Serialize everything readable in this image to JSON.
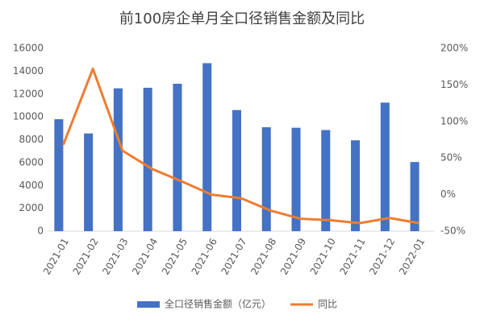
{
  "chart_data": {
    "type": "bar",
    "title": "前100房企单月全口径销售金额及同比",
    "categories": [
      "2021-01",
      "2021-02",
      "2021-03",
      "2021-04",
      "2021-05",
      "2021-06",
      "2021-07",
      "2021-08",
      "2021-09",
      "2021-10",
      "2021-11",
      "2021-12",
      "2022-01"
    ],
    "series": [
      {
        "name": "全口径销售金额（亿元）",
        "type": "bar",
        "color": "#4472c4",
        "values": [
          9800,
          8550,
          12500,
          12550,
          12900,
          14700,
          10600,
          9100,
          9050,
          8850,
          7950,
          11250,
          6050
        ]
      },
      {
        "name": "同比",
        "type": "line",
        "axis": "y2",
        "color": "#ed7d31",
        "values": [
          68,
          172,
          60,
          35,
          18,
          0,
          -5,
          -22,
          -33,
          -35,
          -39,
          -32,
          -39
        ]
      }
    ],
    "ylim": [
      0,
      16000
    ],
    "yticks": [
      0,
      2000,
      4000,
      6000,
      8000,
      10000,
      12000,
      14000,
      16000
    ],
    "y2lim": [
      -50,
      200
    ],
    "y2ticks": [
      {
        "value": -50,
        "label": "-50%"
      },
      {
        "value": 0,
        "label": "0%"
      },
      {
        "value": 50,
        "label": "50%"
      },
      {
        "value": 100,
        "label": "100%"
      },
      {
        "value": 150,
        "label": "150%"
      },
      {
        "value": 200,
        "label": "200%"
      }
    ],
    "grid": false,
    "legend": "bottom"
  }
}
